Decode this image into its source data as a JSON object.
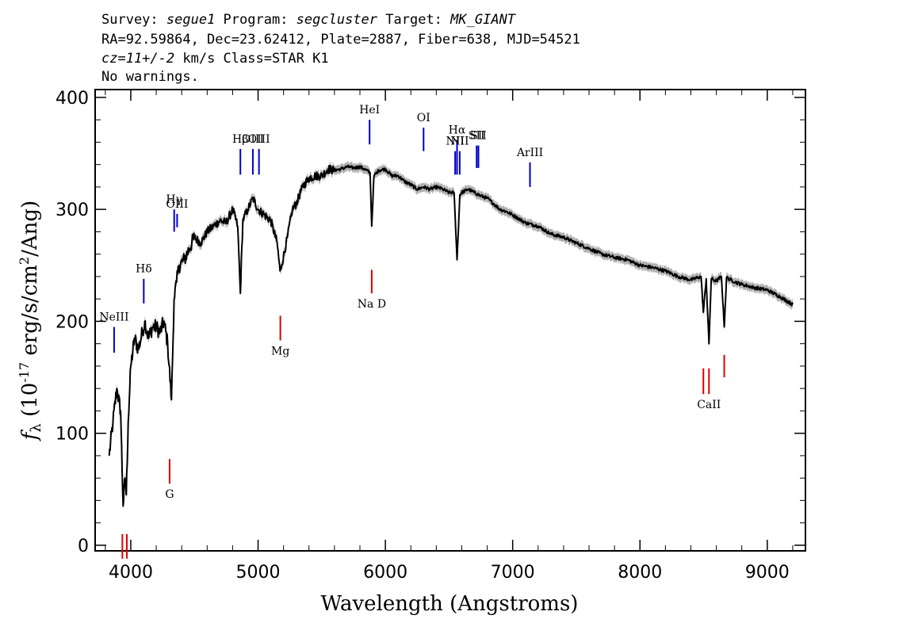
{
  "header": {
    "line1_prefix": "Survey: ",
    "survey": "segue1",
    "line1_mid1": " Program: ",
    "program": "segcluster",
    "line1_mid2": " Target: ",
    "target": "MK_GIANT",
    "line2": "RA=92.59864, Dec=23.62412, Plate=2887, Fiber=638, MJD=54521",
    "line3_redshift": "cz=11+/-2",
    "line3_rest": " km/s Class=STAR K1",
    "line4": "No warnings."
  },
  "chart_data": {
    "type": "line",
    "xlabel": "Wavelength (Angstroms)",
    "ylabel_prefix": "f",
    "ylabel_sub": "λ",
    "ylabel_mid": " (10",
    "ylabel_exp1": "-17",
    "ylabel_mid2": " erg/s/cm",
    "ylabel_exp2": "2",
    "ylabel_end": "/Ang)",
    "xlim": [
      3720,
      9300
    ],
    "ylim": [
      -5,
      407
    ],
    "xticks": [
      4000,
      5000,
      6000,
      7000,
      8000,
      9000
    ],
    "xtick_labels": [
      "4000",
      "5000",
      "6000",
      "7000",
      "8000",
      "9000"
    ],
    "yticks": [
      0,
      100,
      200,
      300,
      400
    ],
    "ytick_labels": [
      "0",
      "100",
      "200",
      "300",
      "400"
    ],
    "colors": {
      "flux": "#000000",
      "error": "#b0b0b0",
      "emission": "#0000cc",
      "absorption": "#dd0000"
    },
    "series": [
      {
        "role": "flux",
        "x": [
          3830,
          3860,
          3890,
          3920,
          3940,
          3955,
          3965,
          3980,
          4000,
          4030,
          4060,
          4090,
          4110,
          4140,
          4170,
          4200,
          4230,
          4260,
          4290,
          4320,
          4340,
          4360,
          4380,
          4420,
          4460,
          4500,
          4550,
          4600,
          4650,
          4700,
          4750,
          4800,
          4840,
          4861,
          4880,
          4920,
          4960,
          5000,
          5050,
          5100,
          5150,
          5172,
          5185,
          5230,
          5270,
          5300,
          5350,
          5400,
          5450,
          5500,
          5550,
          5600,
          5650,
          5700,
          5750,
          5800,
          5850,
          5880,
          5893,
          5910,
          5950,
          6000,
          6050,
          6100,
          6150,
          6200,
          6250,
          6300,
          6350,
          6400,
          6450,
          6500,
          6540,
          6563,
          6585,
          6600,
          6650,
          6700,
          6750,
          6800,
          6850,
          6900,
          6950,
          7000,
          7100,
          7200,
          7300,
          7400,
          7500,
          7600,
          7700,
          7800,
          7900,
          8000,
          8100,
          8200,
          8300,
          8400,
          8480,
          8498,
          8520,
          8542,
          8560,
          8600,
          8640,
          8662,
          8680,
          8750,
          8800,
          8900,
          9000,
          9100,
          9200
        ],
        "y": [
          80,
          110,
          140,
          120,
          35,
          60,
          45,
          110,
          160,
          185,
          175,
          190,
          200,
          185,
          195,
          195,
          190,
          200,
          180,
          130,
          220,
          235,
          250,
          255,
          265,
          275,
          270,
          280,
          285,
          290,
          288,
          300,
          285,
          225,
          290,
          300,
          310,
          300,
          295,
          290,
          270,
          245,
          250,
          275,
          300,
          305,
          320,
          328,
          330,
          330,
          336,
          335,
          336,
          338,
          337,
          338,
          335,
          333,
          285,
          330,
          335,
          336,
          330,
          330,
          325,
          322,
          318,
          320,
          318,
          320,
          318,
          315,
          315,
          255,
          313,
          315,
          318,
          315,
          312,
          310,
          305,
          300,
          298,
          295,
          288,
          285,
          278,
          275,
          270,
          265,
          260,
          257,
          255,
          250,
          248,
          245,
          240,
          237,
          240,
          208,
          238,
          180,
          238,
          236,
          240,
          195,
          239,
          235,
          233,
          230,
          228,
          222,
          215
        ]
      }
    ],
    "emission_lines": [
      {
        "label": "NeIII",
        "wave": 3869,
        "y_top": 195,
        "y_bottom": 172
      },
      {
        "label": "Hδ",
        "wave": 4102,
        "y_top": 238,
        "y_bottom": 216
      },
      {
        "label": "Hγ",
        "wave": 4341,
        "y_top": 300,
        "y_bottom": 280
      },
      {
        "label": "OIII",
        "wave": 4364,
        "y_top": 296,
        "y_bottom": 284
      },
      {
        "label": "Hβ",
        "wave": 4861,
        "y_top": 354,
        "y_bottom": 331
      },
      {
        "label": "OIII",
        "wave": 4959,
        "y_top": 354,
        "y_bottom": 331
      },
      {
        "label": "OIII",
        "wave": 5007,
        "y_top": 354,
        "y_bottom": 331
      },
      {
        "label": "HeI",
        "wave": 5876,
        "y_top": 380,
        "y_bottom": 358
      },
      {
        "label": "OI",
        "wave": 6300,
        "y_top": 373,
        "y_bottom": 352
      },
      {
        "label": "NII",
        "wave": 6548,
        "y_top": 352,
        "y_bottom": 331
      },
      {
        "label": "Hα",
        "wave": 6563,
        "y_top": 362,
        "y_bottom": 331
      },
      {
        "label": "NII",
        "wave": 6584,
        "y_top": 352,
        "y_bottom": 331
      },
      {
        "label": "SII",
        "wave": 6717,
        "y_top": 357,
        "y_bottom": 337
      },
      {
        "label": "SII",
        "wave": 6731,
        "y_top": 357,
        "y_bottom": 337
      },
      {
        "label": "ArIII",
        "wave": 7136,
        "y_top": 342,
        "y_bottom": 320
      }
    ],
    "absorption_lines": [
      {
        "label": "",
        "wave": 3934,
        "y_top": 10,
        "y_bottom": -12
      },
      {
        "label": "",
        "wave": 3969,
        "y_top": 10,
        "y_bottom": -12
      },
      {
        "label": "G",
        "wave": 4305,
        "y_top": 77,
        "y_bottom": 55
      },
      {
        "label": "Mg",
        "wave": 5175,
        "y_top": 205,
        "y_bottom": 183
      },
      {
        "label": "Na D",
        "wave": 5893,
        "y_top": 246,
        "y_bottom": 225
      },
      {
        "label": "",
        "wave": 8498,
        "y_top": 158,
        "y_bottom": 135
      },
      {
        "label": "CaII",
        "wave": 8542,
        "y_top": 158,
        "y_bottom": 135
      },
      {
        "label": "",
        "wave": 8662,
        "y_top": 170,
        "y_bottom": 150
      }
    ]
  }
}
